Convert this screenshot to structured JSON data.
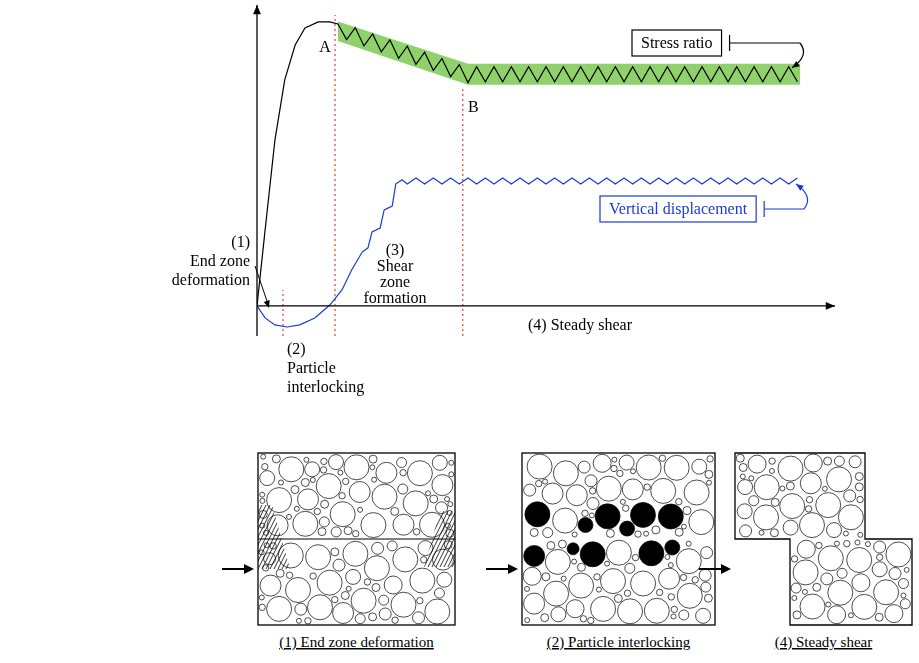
{
  "chart_data": {
    "type": "line",
    "xlim": [
      0,
      100
    ],
    "ylim": [
      -10,
      100
    ],
    "tick_labels": false,
    "grid": false,
    "series": [
      {
        "name": "Stress ratio",
        "color": "#000000",
        "x": [
          0,
          1.4,
          3.1,
          4.8,
          6.6,
          8.3,
          10.6,
          12.6,
          14,
          15.5,
          17,
          18.5,
          20,
          21.5,
          23,
          24.5,
          26,
          27.5,
          29,
          30.5,
          32,
          33.5,
          35,
          36.5,
          38,
          39.5,
          41,
          42.5,
          44,
          45.5,
          47,
          48.5,
          50,
          51.5,
          53,
          54.5,
          56,
          57.5,
          59,
          60.5,
          62,
          63.5,
          65,
          66.5,
          68,
          69.5,
          71,
          72.5,
          74,
          75.5,
          77,
          78.5,
          80,
          81.5,
          83,
          84.5,
          86,
          87.5,
          89,
          90.5,
          92,
          93.5
        ],
        "values": [
          0,
          25.2,
          55.1,
          75.1,
          86.7,
          92.4,
          94.4,
          94.4,
          93.7,
          88.5,
          92.5,
          86.4,
          90.4,
          84.4,
          88.4,
          82.3,
          86.3,
          80.3,
          84.3,
          78.3,
          82.2,
          76.2,
          80.2,
          74.2,
          79.5,
          74.5,
          79.5,
          74.5,
          79.5,
          74.5,
          79.5,
          74.5,
          79.5,
          74.5,
          79.5,
          74.5,
          79.5,
          74.5,
          79.5,
          74.5,
          79.5,
          74.5,
          79.5,
          74.5,
          79.5,
          74.5,
          79.5,
          74.5,
          79.5,
          74.5,
          79.5,
          74.5,
          79.5,
          74.5,
          79.5,
          74.5,
          79.5,
          74.5,
          79.5,
          74.5,
          79.5,
          74.5
        ]
      },
      {
        "name": "Vertical displacement",
        "color": "#1a3ccf",
        "x": [
          0,
          1.4,
          3.1,
          5.2,
          7.4,
          10,
          12.6,
          14.7,
          16.4,
          18.2,
          19.2,
          19.9,
          21.3,
          22,
          23.4,
          24,
          25.1,
          26,
          27.5,
          29,
          30.5,
          32,
          33.5,
          35,
          36.5,
          38,
          39.5,
          41,
          42.5,
          44,
          45.5,
          47,
          48.5,
          50,
          51.5,
          53,
          54.5,
          56,
          57.5,
          59,
          60.5,
          62,
          63.5,
          65,
          66.5,
          68,
          69.5,
          71,
          72.5,
          74,
          75.5,
          77,
          78.5,
          80,
          81.5,
          83,
          84.5,
          86,
          87.5,
          89,
          90.5,
          92,
          93.5
        ],
        "values": [
          0,
          -4,
          -6.3,
          -7,
          -6.3,
          -4,
          0.3,
          5.3,
          12,
          17.9,
          19.3,
          24.6,
          25.9,
          31.9,
          33.2,
          40.5,
          41.9,
          40.5,
          42.5,
          40.5,
          42.5,
          40.5,
          42.5,
          40.5,
          42.5,
          40.5,
          42.5,
          40.5,
          42.5,
          40.5,
          42.5,
          40.5,
          42.5,
          40.5,
          42.5,
          40.5,
          42.5,
          40.5,
          42.5,
          40.5,
          42.5,
          40.5,
          42.5,
          40.5,
          42.5,
          40.5,
          42.5,
          40.5,
          42.5,
          40.5,
          42.5,
          40.5,
          42.5,
          40.5,
          42.5,
          40.5,
          42.5,
          40.5,
          42.5,
          40.5,
          42.5,
          40.5,
          42.5
        ]
      }
    ],
    "shaded_band": {
      "color": "#8fd16a",
      "x": [
        14,
        36.5,
        94
      ],
      "upper": [
        94.5,
        80.5,
        80.5
      ],
      "lower": [
        88,
        73.5,
        73.5
      ]
    },
    "phase_boundaries": {
      "color": "#e8402a",
      "line_style": "dotted",
      "x": [
        4.5,
        13.5,
        35.6
      ]
    },
    "annotations": [
      {
        "text": "A"
      },
      {
        "text": "B"
      },
      {
        "lines": [
          "(1)",
          "End zone",
          "deformation"
        ]
      },
      {
        "lines": [
          "(2)",
          "Particle",
          "interlocking"
        ]
      },
      {
        "lines": [
          "(3)",
          "Shear",
          "zone",
          "formation"
        ]
      },
      {
        "text": "(4) Steady shear"
      }
    ]
  },
  "panels": [
    {
      "caption": "(1) End zone deformation"
    },
    {
      "caption": "(2) Particle interlocking"
    },
    {
      "caption": "(4) Steady shear"
    }
  ]
}
